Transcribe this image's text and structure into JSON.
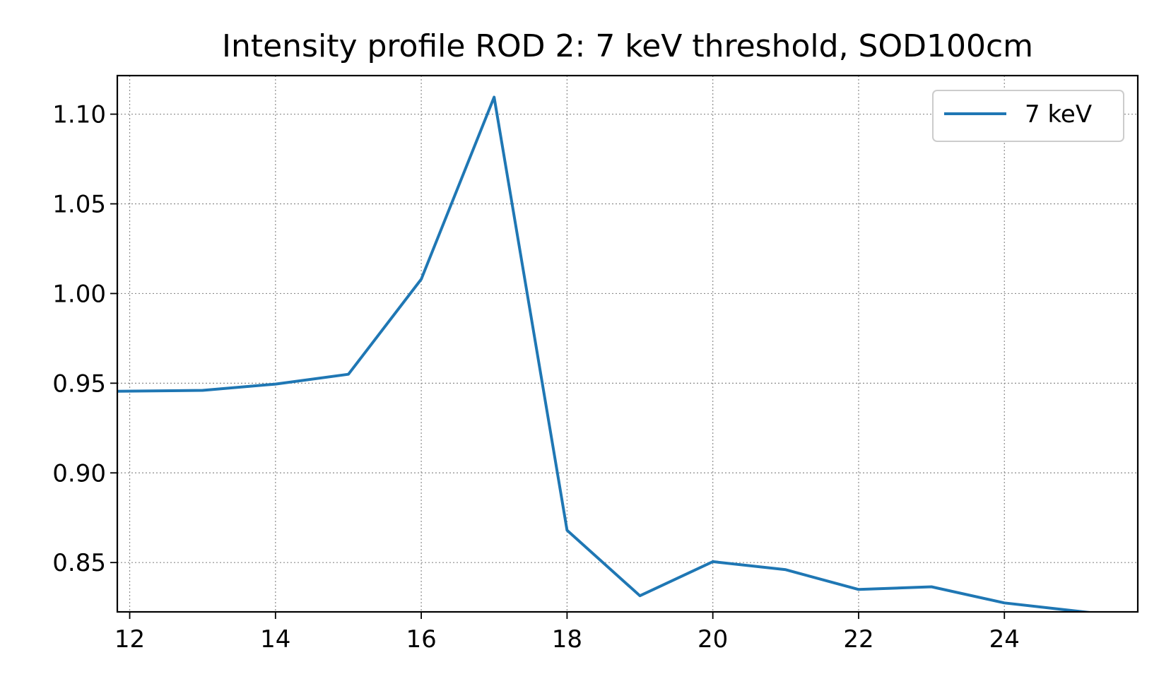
{
  "chart_data": {
    "type": "line",
    "title": "Intensity profile ROD 2: 7 keV threshold, SOD100cm",
    "xlabel": "",
    "ylabel": "",
    "xlim": [
      11.83,
      25.83
    ],
    "ylim": [
      0.8225,
      1.1215
    ],
    "xticks": [
      12,
      14,
      16,
      18,
      20,
      22,
      24
    ],
    "xtick_labels": [
      "12",
      "14",
      "16",
      "18",
      "20",
      "22",
      "24"
    ],
    "yticks": [
      0.85,
      0.9,
      0.95,
      1.0,
      1.05,
      1.1
    ],
    "ytick_labels": [
      "0.85",
      "0.90",
      "0.95",
      "1.00",
      "1.05",
      "1.10"
    ],
    "grid": true,
    "legend_position": "top-right",
    "series": [
      {
        "name": "7 keV",
        "color": "#1f77b4",
        "x": [
          11.83,
          13,
          14,
          15,
          16,
          17,
          18,
          19,
          20,
          21,
          22,
          23,
          24,
          25.2
        ],
        "y": [
          0.9455,
          0.946,
          0.9495,
          0.955,
          1.008,
          1.1095,
          0.868,
          0.8315,
          0.8505,
          0.846,
          0.835,
          0.8365,
          0.8275,
          0.822
        ]
      }
    ]
  }
}
